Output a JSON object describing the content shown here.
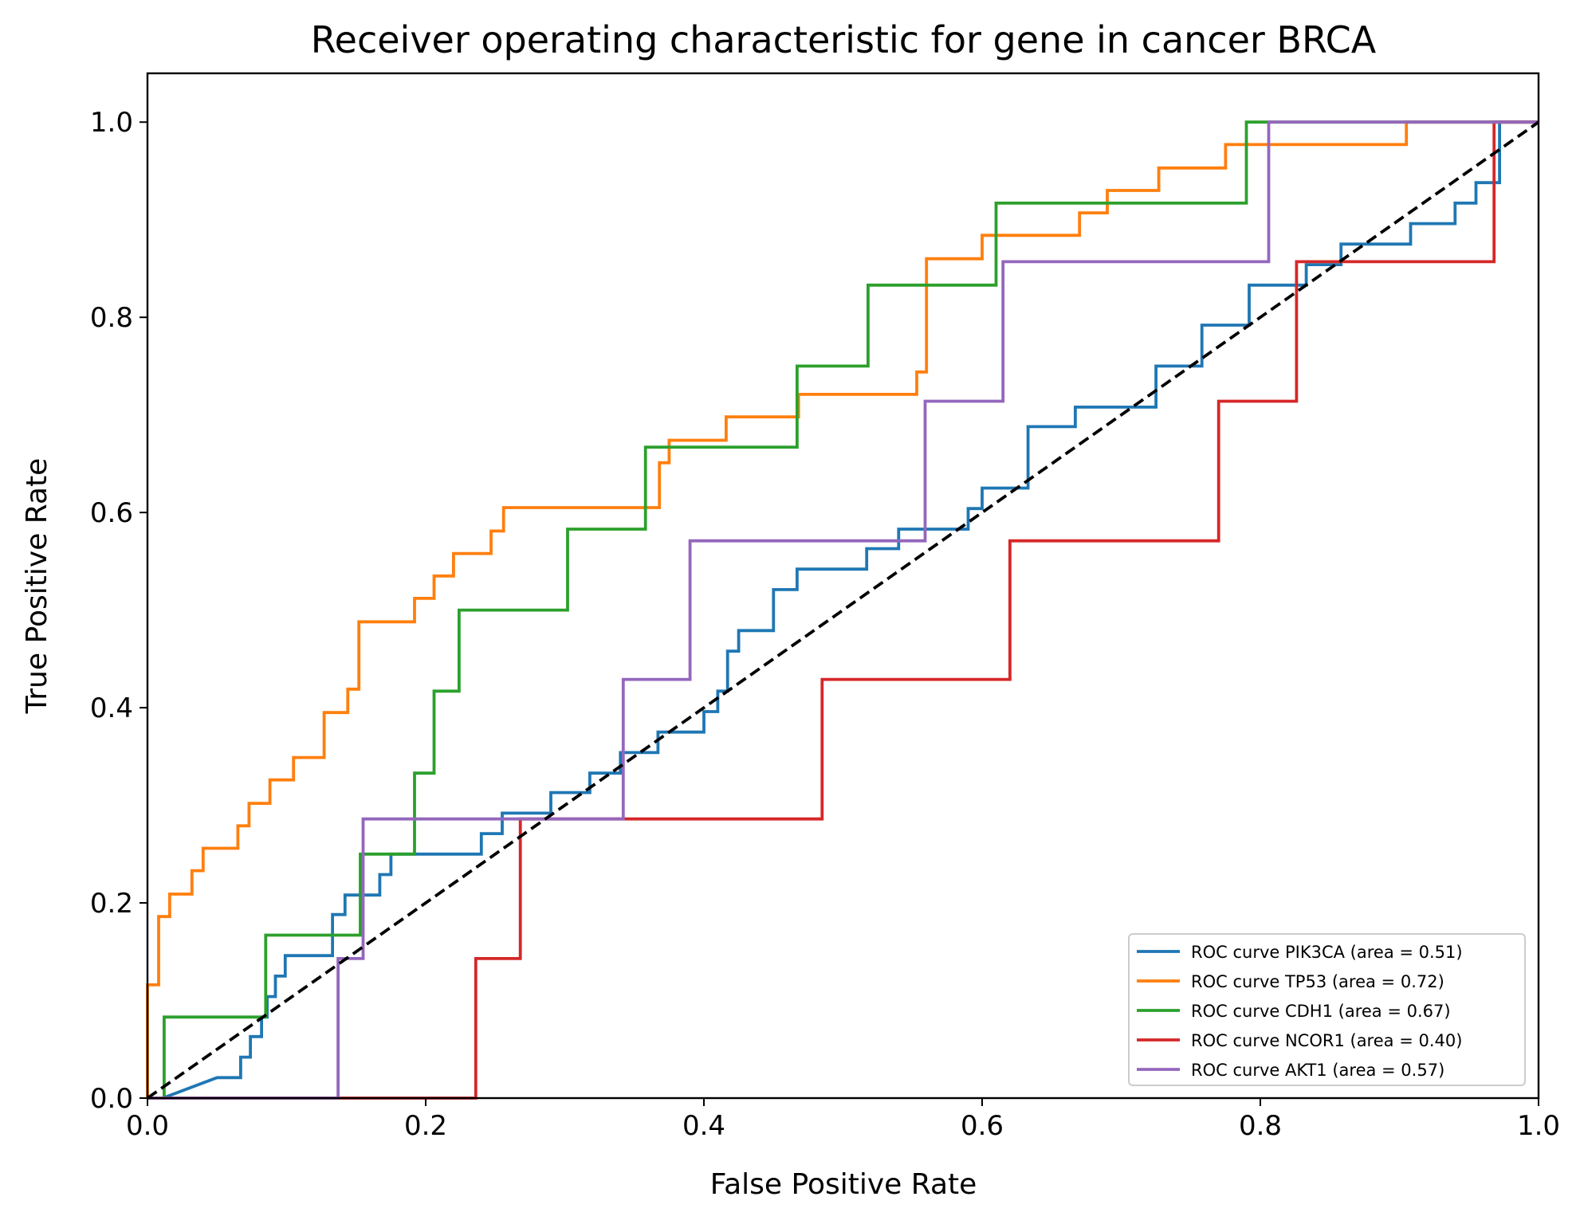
{
  "chart_data": {
    "type": "line",
    "title": "Receiver operating characteristic for gene in cancer BRCA",
    "xlabel": "False Positive Rate",
    "ylabel": "True Positive Rate",
    "xlim": [
      0.0,
      1.0
    ],
    "ylim": [
      0.0,
      1.05
    ],
    "xticks": [
      "0.0",
      "0.2",
      "0.4",
      "0.6",
      "0.8",
      "1.0"
    ],
    "yticks": [
      "0.0",
      "0.2",
      "0.4",
      "0.6",
      "0.8",
      "1.0"
    ],
    "grid": false,
    "legend_position": "lower-right",
    "series": [
      {
        "name": "ROC curve PIK3CA (area = 0.51)",
        "color": "#1f77b4",
        "points": [
          [
            0.0,
            0.0
          ],
          [
            0.011,
            0.0
          ],
          [
            0.05,
            0.021
          ],
          [
            0.067,
            0.021
          ],
          [
            0.067,
            0.042
          ],
          [
            0.074,
            0.042
          ],
          [
            0.074,
            0.063
          ],
          [
            0.082,
            0.063
          ],
          [
            0.082,
            0.083
          ],
          [
            0.086,
            0.083
          ],
          [
            0.086,
            0.104
          ],
          [
            0.092,
            0.104
          ],
          [
            0.092,
            0.125
          ],
          [
            0.099,
            0.125
          ],
          [
            0.099,
            0.146
          ],
          [
            0.133,
            0.146
          ],
          [
            0.133,
            0.188
          ],
          [
            0.142,
            0.188
          ],
          [
            0.142,
            0.208
          ],
          [
            0.167,
            0.208
          ],
          [
            0.167,
            0.229
          ],
          [
            0.175,
            0.229
          ],
          [
            0.175,
            0.25
          ],
          [
            0.24,
            0.25
          ],
          [
            0.24,
            0.271
          ],
          [
            0.255,
            0.271
          ],
          [
            0.255,
            0.292
          ],
          [
            0.29,
            0.292
          ],
          [
            0.29,
            0.313
          ],
          [
            0.318,
            0.313
          ],
          [
            0.318,
            0.333
          ],
          [
            0.34,
            0.333
          ],
          [
            0.34,
            0.354
          ],
          [
            0.367,
            0.354
          ],
          [
            0.367,
            0.375
          ],
          [
            0.4,
            0.375
          ],
          [
            0.4,
            0.396
          ],
          [
            0.41,
            0.396
          ],
          [
            0.41,
            0.417
          ],
          [
            0.417,
            0.417
          ],
          [
            0.417,
            0.458
          ],
          [
            0.425,
            0.458
          ],
          [
            0.425,
            0.479
          ],
          [
            0.45,
            0.479
          ],
          [
            0.45,
            0.521
          ],
          [
            0.467,
            0.521
          ],
          [
            0.467,
            0.542
          ],
          [
            0.517,
            0.542
          ],
          [
            0.517,
            0.563
          ],
          [
            0.54,
            0.563
          ],
          [
            0.54,
            0.583
          ],
          [
            0.59,
            0.583
          ],
          [
            0.59,
            0.604
          ],
          [
            0.6,
            0.604
          ],
          [
            0.6,
            0.625
          ],
          [
            0.633,
            0.625
          ],
          [
            0.633,
            0.688
          ],
          [
            0.667,
            0.688
          ],
          [
            0.667,
            0.708
          ],
          [
            0.725,
            0.708
          ],
          [
            0.725,
            0.75
          ],
          [
            0.758,
            0.75
          ],
          [
            0.758,
            0.792
          ],
          [
            0.792,
            0.792
          ],
          [
            0.792,
            0.833
          ],
          [
            0.833,
            0.833
          ],
          [
            0.833,
            0.854
          ],
          [
            0.858,
            0.854
          ],
          [
            0.858,
            0.875
          ],
          [
            0.908,
            0.875
          ],
          [
            0.908,
            0.896
          ],
          [
            0.94,
            0.896
          ],
          [
            0.94,
            0.917
          ],
          [
            0.955,
            0.917
          ],
          [
            0.955,
            0.938
          ],
          [
            0.972,
            0.938
          ],
          [
            0.972,
            1.0
          ],
          [
            1.0,
            1.0
          ]
        ]
      },
      {
        "name": "ROC curve TP53 (area = 0.72)",
        "color": "#ff7f0e",
        "points": [
          [
            0.0,
            0.0
          ],
          [
            0.0,
            0.116
          ],
          [
            0.008,
            0.116
          ],
          [
            0.008,
            0.186
          ],
          [
            0.016,
            0.186
          ],
          [
            0.016,
            0.209
          ],
          [
            0.032,
            0.209
          ],
          [
            0.032,
            0.233
          ],
          [
            0.04,
            0.233
          ],
          [
            0.04,
            0.256
          ],
          [
            0.065,
            0.256
          ],
          [
            0.065,
            0.279
          ],
          [
            0.073,
            0.279
          ],
          [
            0.073,
            0.302
          ],
          [
            0.088,
            0.302
          ],
          [
            0.088,
            0.326
          ],
          [
            0.105,
            0.326
          ],
          [
            0.105,
            0.349
          ],
          [
            0.127,
            0.349
          ],
          [
            0.127,
            0.395
          ],
          [
            0.144,
            0.395
          ],
          [
            0.144,
            0.419
          ],
          [
            0.152,
            0.419
          ],
          [
            0.152,
            0.488
          ],
          [
            0.192,
            0.488
          ],
          [
            0.192,
            0.512
          ],
          [
            0.206,
            0.512
          ],
          [
            0.206,
            0.535
          ],
          [
            0.22,
            0.535
          ],
          [
            0.22,
            0.558
          ],
          [
            0.247,
            0.558
          ],
          [
            0.247,
            0.581
          ],
          [
            0.256,
            0.581
          ],
          [
            0.256,
            0.605
          ],
          [
            0.368,
            0.605
          ],
          [
            0.368,
            0.651
          ],
          [
            0.375,
            0.651
          ],
          [
            0.375,
            0.674
          ],
          [
            0.416,
            0.674
          ],
          [
            0.416,
            0.698
          ],
          [
            0.468,
            0.698
          ],
          [
            0.468,
            0.721
          ],
          [
            0.553,
            0.721
          ],
          [
            0.553,
            0.744
          ],
          [
            0.56,
            0.744
          ],
          [
            0.56,
            0.86
          ],
          [
            0.6,
            0.86
          ],
          [
            0.6,
            0.884
          ],
          [
            0.67,
            0.884
          ],
          [
            0.67,
            0.907
          ],
          [
            0.69,
            0.907
          ],
          [
            0.69,
            0.93
          ],
          [
            0.727,
            0.93
          ],
          [
            0.727,
            0.953
          ],
          [
            0.775,
            0.953
          ],
          [
            0.775,
            0.977
          ],
          [
            0.905,
            0.977
          ],
          [
            0.905,
            1.0
          ],
          [
            1.0,
            1.0
          ]
        ]
      },
      {
        "name": "ROC curve CDH1 (area = 0.67)",
        "color": "#2ca02c",
        "points": [
          [
            0.0,
            0.0
          ],
          [
            0.012,
            0.0
          ],
          [
            0.012,
            0.083
          ],
          [
            0.085,
            0.083
          ],
          [
            0.085,
            0.167
          ],
          [
            0.153,
            0.167
          ],
          [
            0.153,
            0.25
          ],
          [
            0.192,
            0.25
          ],
          [
            0.192,
            0.333
          ],
          [
            0.206,
            0.333
          ],
          [
            0.206,
            0.417
          ],
          [
            0.224,
            0.417
          ],
          [
            0.224,
            0.5
          ],
          [
            0.302,
            0.5
          ],
          [
            0.302,
            0.583
          ],
          [
            0.358,
            0.583
          ],
          [
            0.358,
            0.667
          ],
          [
            0.467,
            0.667
          ],
          [
            0.467,
            0.75
          ],
          [
            0.518,
            0.75
          ],
          [
            0.518,
            0.833
          ],
          [
            0.61,
            0.833
          ],
          [
            0.61,
            0.917
          ],
          [
            0.79,
            0.917
          ],
          [
            0.79,
            1.0
          ],
          [
            1.0,
            1.0
          ]
        ]
      },
      {
        "name": "ROC curve NCOR1 (area = 0.40)",
        "color": "#d62728",
        "points": [
          [
            0.0,
            0.0
          ],
          [
            0.236,
            0.0
          ],
          [
            0.236,
            0.143
          ],
          [
            0.268,
            0.143
          ],
          [
            0.268,
            0.286
          ],
          [
            0.485,
            0.286
          ],
          [
            0.485,
            0.429
          ],
          [
            0.62,
            0.429
          ],
          [
            0.62,
            0.571
          ],
          [
            0.77,
            0.571
          ],
          [
            0.77,
            0.714
          ],
          [
            0.826,
            0.714
          ],
          [
            0.826,
            0.857
          ],
          [
            0.968,
            0.857
          ],
          [
            0.968,
            1.0
          ],
          [
            1.0,
            1.0
          ]
        ]
      },
      {
        "name": "ROC curve AKT1 (area = 0.57)",
        "color": "#9467bd",
        "points": [
          [
            0.0,
            0.0
          ],
          [
            0.137,
            0.0
          ],
          [
            0.137,
            0.143
          ],
          [
            0.155,
            0.143
          ],
          [
            0.155,
            0.286
          ],
          [
            0.342,
            0.286
          ],
          [
            0.342,
            0.429
          ],
          [
            0.39,
            0.429
          ],
          [
            0.39,
            0.571
          ],
          [
            0.559,
            0.571
          ],
          [
            0.559,
            0.714
          ],
          [
            0.615,
            0.714
          ],
          [
            0.615,
            0.857
          ],
          [
            0.806,
            0.857
          ],
          [
            0.806,
            1.0
          ],
          [
            1.0,
            1.0
          ]
        ]
      }
    ],
    "reference_line": {
      "style": "dashed",
      "color": "#000000",
      "points": [
        [
          0.0,
          0.0
        ],
        [
          1.0,
          1.0
        ]
      ]
    }
  }
}
